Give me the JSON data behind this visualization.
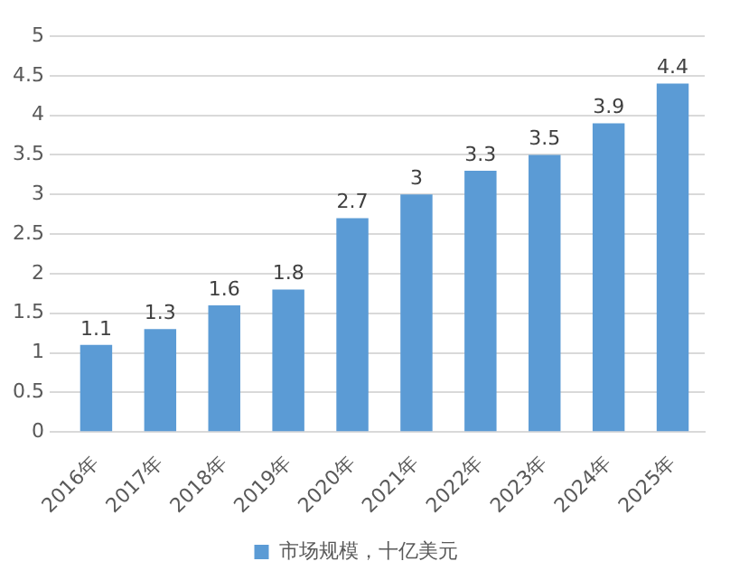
{
  "chart_data": {
    "type": "bar",
    "categories": [
      "2016年",
      "2017年",
      "2018年",
      "2019年",
      "2020年",
      "2021年",
      "2022年",
      "2023年",
      "2024年",
      "2025年"
    ],
    "series": [
      {
        "name": "市场规模，十亿美元",
        "color": "#5b9bd5",
        "values": [
          1.1,
          1.3,
          1.6,
          1.8,
          2.7,
          3,
          3.3,
          3.5,
          3.9,
          4.4
        ]
      }
    ],
    "ylim": [
      0,
      5
    ],
    "yticks": [
      0,
      0.5,
      1,
      1.5,
      2,
      2.5,
      3,
      3.5,
      4,
      4.5,
      5
    ],
    "grid": "y",
    "legend": "bottom",
    "data_labels": true
  }
}
